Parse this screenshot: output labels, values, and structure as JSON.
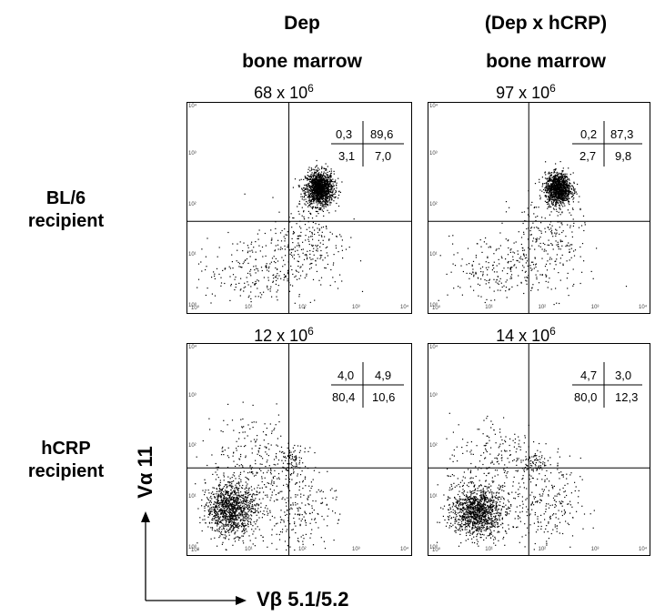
{
  "column_headers": [
    {
      "line1": "Dep",
      "line2": "bone marrow"
    },
    {
      "line1": "(Dep x hCRP)",
      "line2": "bone marrow"
    }
  ],
  "row_headers": [
    {
      "line1": "BL/6",
      "line2": "recipient"
    },
    {
      "line1": "hCRP",
      "line2": "recipient"
    }
  ],
  "axis_labels": {
    "y": "Vα 11",
    "x": "Vβ 5.1/5.2"
  },
  "colors": {
    "dots": "#000000",
    "lines": "#000000",
    "background": "#ffffff"
  },
  "chart_data": [
    {
      "type": "scatter",
      "row": "BL/6 recipient",
      "column": "Dep bone marrow",
      "cell_count": {
        "base": "68 x 10",
        "exp": "6"
      },
      "quadrants": {
        "top_left": "0,3",
        "top_right": "89,6",
        "bottom_left": "3,1",
        "bottom_right": "7,0"
      },
      "xlim": [
        1,
        10000
      ],
      "ylim": [
        1,
        10000
      ],
      "scale": "log",
      "tick_labels": [
        "10⁰",
        "10¹",
        "10²",
        "10³",
        "10⁴"
      ],
      "gate": {
        "x": 55,
        "y": 50
      }
    },
    {
      "type": "scatter",
      "row": "BL/6 recipient",
      "column": "(Dep x hCRP) bone marrow",
      "cell_count": {
        "base": "97 x 10",
        "exp": "6"
      },
      "quadrants": {
        "top_left": "0,2",
        "top_right": "87,3",
        "bottom_left": "2,7",
        "bottom_right": "9,8"
      },
      "xlim": [
        1,
        10000
      ],
      "ylim": [
        1,
        10000
      ],
      "scale": "log",
      "tick_labels": [
        "10⁰",
        "10¹",
        "10²",
        "10³",
        "10⁴"
      ],
      "gate": {
        "x": 55,
        "y": 50
      }
    },
    {
      "type": "scatter",
      "row": "hCRP recipient",
      "column": "Dep bone marrow",
      "cell_count": {
        "base": "12 x 10",
        "exp": "6"
      },
      "quadrants": {
        "top_left": "4,0",
        "top_right": "4,9",
        "bottom_left": "80,4",
        "bottom_right": "10,6"
      },
      "xlim": [
        1,
        10000
      ],
      "ylim": [
        1,
        10000
      ],
      "scale": "log",
      "tick_labels": [
        "10⁰",
        "10¹",
        "10²",
        "10³",
        "10⁴"
      ],
      "gate": {
        "x": 55,
        "y": 40
      }
    },
    {
      "type": "scatter",
      "row": "hCRP recipient",
      "column": "(Dep x hCRP) bone marrow",
      "cell_count": {
        "base": "14 x 10",
        "exp": "6"
      },
      "quadrants": {
        "top_left": "4,7",
        "top_right": "3,0",
        "bottom_left": "80,0",
        "bottom_right": "12,3"
      },
      "xlim": [
        1,
        10000
      ],
      "ylim": [
        1,
        10000
      ],
      "scale": "log",
      "tick_labels": [
        "10⁰",
        "10¹",
        "10²",
        "10³",
        "10⁴"
      ],
      "gate": {
        "x": 55,
        "y": 40
      }
    }
  ]
}
